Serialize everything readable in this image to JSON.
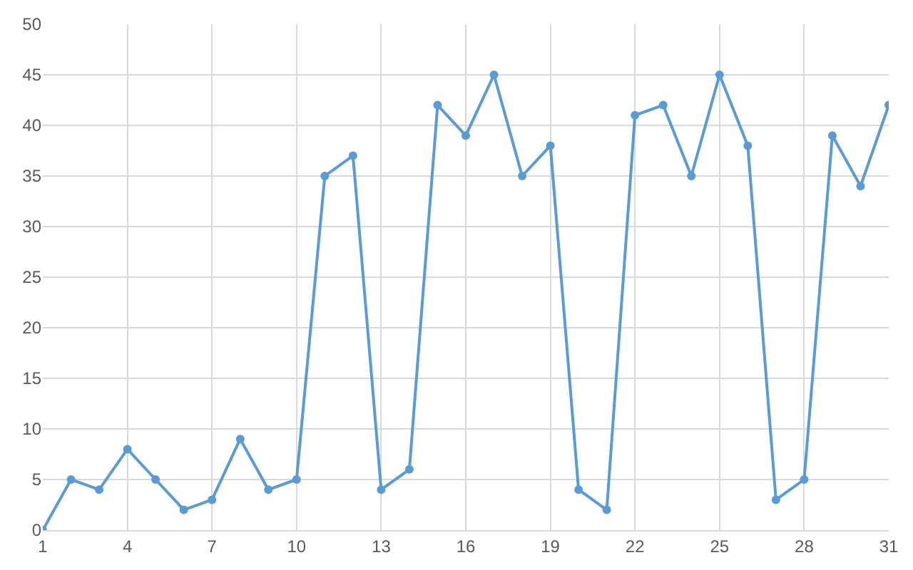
{
  "chart_data": {
    "type": "line",
    "x": [
      1,
      2,
      3,
      4,
      5,
      6,
      7,
      8,
      9,
      10,
      11,
      12,
      13,
      14,
      15,
      16,
      17,
      18,
      19,
      20,
      21,
      22,
      23,
      24,
      25,
      26,
      27,
      28,
      29,
      30,
      31
    ],
    "series": [
      {
        "color": "#5b9bd5",
        "values": [
          0,
          5,
          4,
          8,
          5,
          2,
          3,
          9,
          4,
          5,
          35,
          37,
          4,
          6,
          42,
          39,
          45,
          35,
          38,
          4,
          2,
          41,
          42,
          35,
          45,
          38,
          3,
          5,
          39,
          34,
          42
        ]
      }
    ],
    "xlim": [
      1,
      31
    ],
    "xticks": [
      1,
      4,
      7,
      10,
      13,
      16,
      19,
      22,
      25,
      28,
      31
    ],
    "ylim": [
      0,
      50
    ],
    "yticks": [
      0,
      5,
      10,
      15,
      20,
      25,
      30,
      35,
      40,
      45,
      50
    ],
    "grid": true,
    "marker": "circle",
    "line_style": "solid"
  }
}
